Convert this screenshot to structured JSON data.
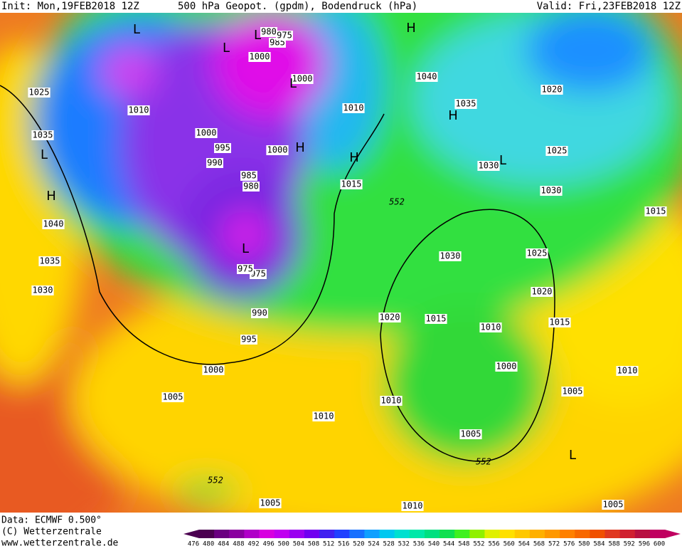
{
  "header": {
    "init": "Init: Mon,19FEB2018 12Z",
    "title": "500 hPa Geopot. (gpdm), Bodendruck (hPa)",
    "valid": "Valid: Fri,23FEB2018 12Z"
  },
  "map": {
    "isobar_labels": [
      "1025",
      "1010",
      "1035",
      "1040",
      "1035",
      "1030",
      "1000",
      "995",
      "990",
      "985",
      "980",
      "1000",
      "1000",
      "1000",
      "985",
      "975",
      "980",
      "1010",
      "1015",
      "1040",
      "1035",
      "1030",
      "1025",
      "1020",
      "1030",
      "1015",
      "1030",
      "1025",
      "1020",
      "1015",
      "1015",
      "1010",
      "1020",
      "975",
      "975",
      "990",
      "995",
      "1000",
      "1005",
      "1010",
      "1010",
      "1000",
      "1005",
      "1010",
      "1005",
      "1005",
      "1010",
      "1005"
    ],
    "geopotential_labels": [
      "552",
      "552",
      "552"
    ],
    "centers": [
      "L",
      "L",
      "L",
      "L",
      "H",
      "H",
      "H",
      "H",
      "L",
      "L",
      "H",
      "L",
      "L"
    ]
  },
  "footer": {
    "data": "Data: ECMWF  0.500°",
    "copyright": "(C) Wetterzentrale",
    "url": "www.wetterzentrale.de"
  },
  "scale": {
    "ticks": [
      476,
      480,
      484,
      488,
      492,
      496,
      500,
      504,
      508,
      512,
      516,
      520,
      524,
      528,
      532,
      536,
      540,
      544,
      548,
      552,
      556,
      560,
      564,
      568,
      572,
      576,
      580,
      584,
      588,
      592,
      596,
      600
    ],
    "colors": [
      "#4b0050",
      "#6a0080",
      "#8a00a0",
      "#b000c8",
      "#d800e0",
      "#c000f0",
      "#9a00f0",
      "#7000f0",
      "#4020f0",
      "#2040ff",
      "#1870ff",
      "#10a0ff",
      "#00c8f0",
      "#00e0d0",
      "#00e8a8",
      "#00e080",
      "#10e050",
      "#40f020",
      "#90f000",
      "#e0f000",
      "#ffe000",
      "#ffc800",
      "#ffb000",
      "#ff9800",
      "#ff8000",
      "#f86800",
      "#f05000",
      "#e03820",
      "#d02030",
      "#b81040",
      "#c00060"
    ]
  }
}
